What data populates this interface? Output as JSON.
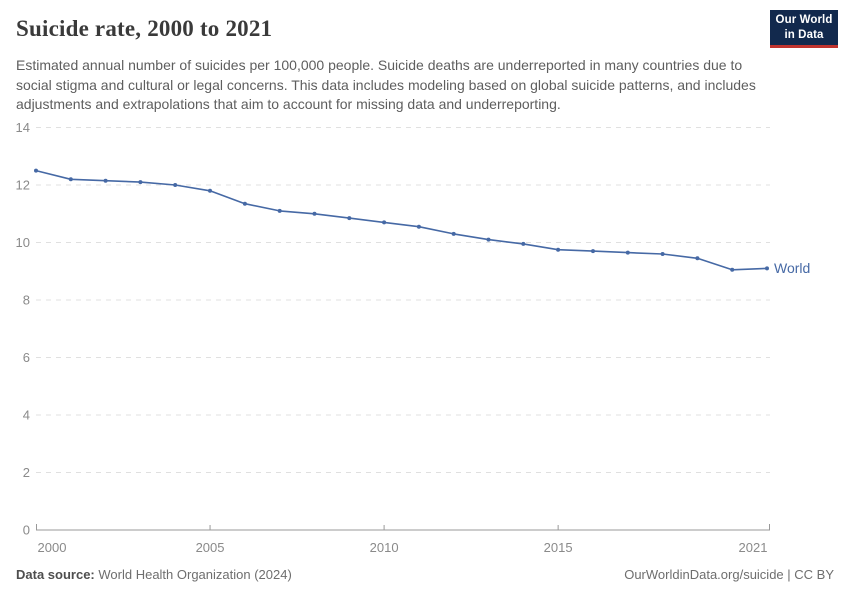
{
  "header": {
    "title": "Suicide rate, 2000 to 2021",
    "subtitle": "Estimated annual number of suicides per 100,000 people. Suicide deaths are underreported in many countries due to social stigma and cultural or legal concerns. This data includes modeling based on global suicide patterns, and includes adjustments and extrapolations that aim to account for missing data and underreporting.",
    "logo": {
      "line1": "Our World",
      "line2": "in Data",
      "bg_color": "#12294d",
      "stripe_color": "#c0332e"
    }
  },
  "chart_data": {
    "type": "line",
    "title": "Suicide rate, 2000 to 2021",
    "x": [
      2000,
      2001,
      2002,
      2003,
      2004,
      2005,
      2006,
      2007,
      2008,
      2009,
      2010,
      2011,
      2012,
      2013,
      2014,
      2015,
      2016,
      2017,
      2018,
      2019,
      2020,
      2021
    ],
    "series": [
      {
        "name": "World",
        "color": "#4669a5",
        "values": [
          12.5,
          12.2,
          12.15,
          12.1,
          12.0,
          11.8,
          11.35,
          11.1,
          11.0,
          10.85,
          10.7,
          10.55,
          10.3,
          10.1,
          9.95,
          9.75,
          9.7,
          9.65,
          9.6,
          9.45,
          9.05,
          9.1
        ]
      }
    ],
    "xlabel": "",
    "ylabel": "",
    "xlim": [
      2000,
      2021
    ],
    "ylim": [
      0,
      14
    ],
    "y_ticks": [
      0,
      2,
      4,
      6,
      8,
      10,
      12,
      14
    ],
    "x_tick_years": [
      2000,
      2005,
      2010,
      2015,
      2021
    ],
    "x_tick_labels": [
      "2000",
      "2005",
      "2010",
      "2015",
      "2021"
    ],
    "grid": "horizontal-dashed",
    "legend": "end-of-line-label",
    "end_label": "World",
    "colors": {
      "line": "#4669a5",
      "gridline": "#e0e0e0",
      "axis": "#999999",
      "tick_label": "#8a8a8a"
    }
  },
  "footer": {
    "source_label": "Data source:",
    "source_value": "World Health Organization (2024)",
    "credit": "OurWorldinData.org/suicide | CC BY"
  }
}
